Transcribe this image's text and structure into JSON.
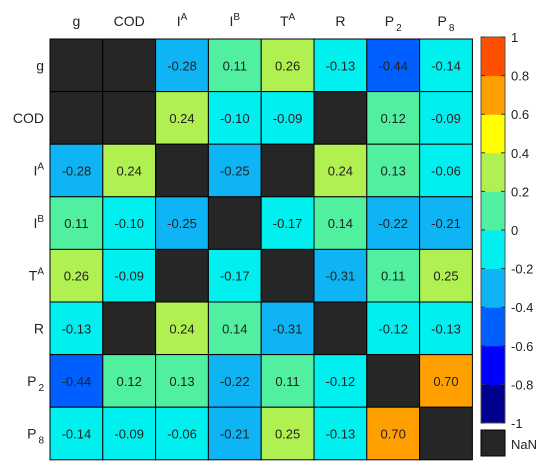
{
  "chart_data": {
    "type": "heatmap",
    "columns": [
      {
        "base": "g",
        "sup": "",
        "sub": ""
      },
      {
        "base": "COD",
        "sup": "",
        "sub": ""
      },
      {
        "base": "I",
        "sup": "A",
        "sub": ""
      },
      {
        "base": "I",
        "sup": "B",
        "sub": ""
      },
      {
        "base": "T",
        "sup": "A",
        "sub": ""
      },
      {
        "base": "R",
        "sup": "",
        "sub": ""
      },
      {
        "base": "P",
        "sup": "",
        "sub": "2"
      },
      {
        "base": "P",
        "sup": "",
        "sub": "8"
      }
    ],
    "rows": [
      {
        "base": "g",
        "sup": "",
        "sub": ""
      },
      {
        "base": "COD",
        "sup": "",
        "sub": ""
      },
      {
        "base": "I",
        "sup": "A",
        "sub": ""
      },
      {
        "base": "I",
        "sup": "B",
        "sub": ""
      },
      {
        "base": "T",
        "sup": "A",
        "sub": ""
      },
      {
        "base": "R",
        "sup": "",
        "sub": ""
      },
      {
        "base": "P",
        "sup": "",
        "sub": "2"
      },
      {
        "base": "P",
        "sup": "",
        "sub": "8"
      }
    ],
    "values": [
      [
        null,
        null,
        -0.28,
        0.11,
        0.26,
        -0.13,
        -0.44,
        -0.14
      ],
      [
        null,
        null,
        0.24,
        -0.1,
        -0.09,
        null,
        0.12,
        -0.09
      ],
      [
        -0.28,
        0.24,
        null,
        -0.25,
        null,
        0.24,
        0.13,
        -0.06
      ],
      [
        0.11,
        -0.1,
        -0.25,
        null,
        -0.17,
        0.14,
        -0.22,
        -0.21
      ],
      [
        0.26,
        -0.09,
        null,
        -0.17,
        null,
        -0.31,
        0.11,
        0.25
      ],
      [
        -0.13,
        null,
        0.24,
        0.14,
        -0.31,
        null,
        -0.12,
        -0.13
      ],
      [
        -0.44,
        0.12,
        0.13,
        -0.22,
        0.11,
        -0.12,
        null,
        0.7
      ],
      [
        -0.14,
        -0.09,
        -0.06,
        -0.21,
        0.25,
        -0.13,
        0.7,
        null
      ]
    ],
    "color_range": [
      -1,
      1
    ],
    "colorbar_ticks": [
      1,
      0.8,
      0.6,
      0.4,
      0.2,
      0,
      -0.2,
      -0.4,
      -0.6,
      -0.8,
      -1
    ],
    "colorbar_tick_labels": [
      "1",
      "0.8",
      "0.6",
      "0.4",
      "0.2",
      "0",
      "-0.2",
      "-0.4",
      "-0.6",
      "-0.8",
      "-1"
    ],
    "colormap": "jet (10 discrete levels)",
    "nan_color": "#262626",
    "nan_label": "NaN",
    "grid_color": "#000000",
    "legend_position": "right"
  }
}
